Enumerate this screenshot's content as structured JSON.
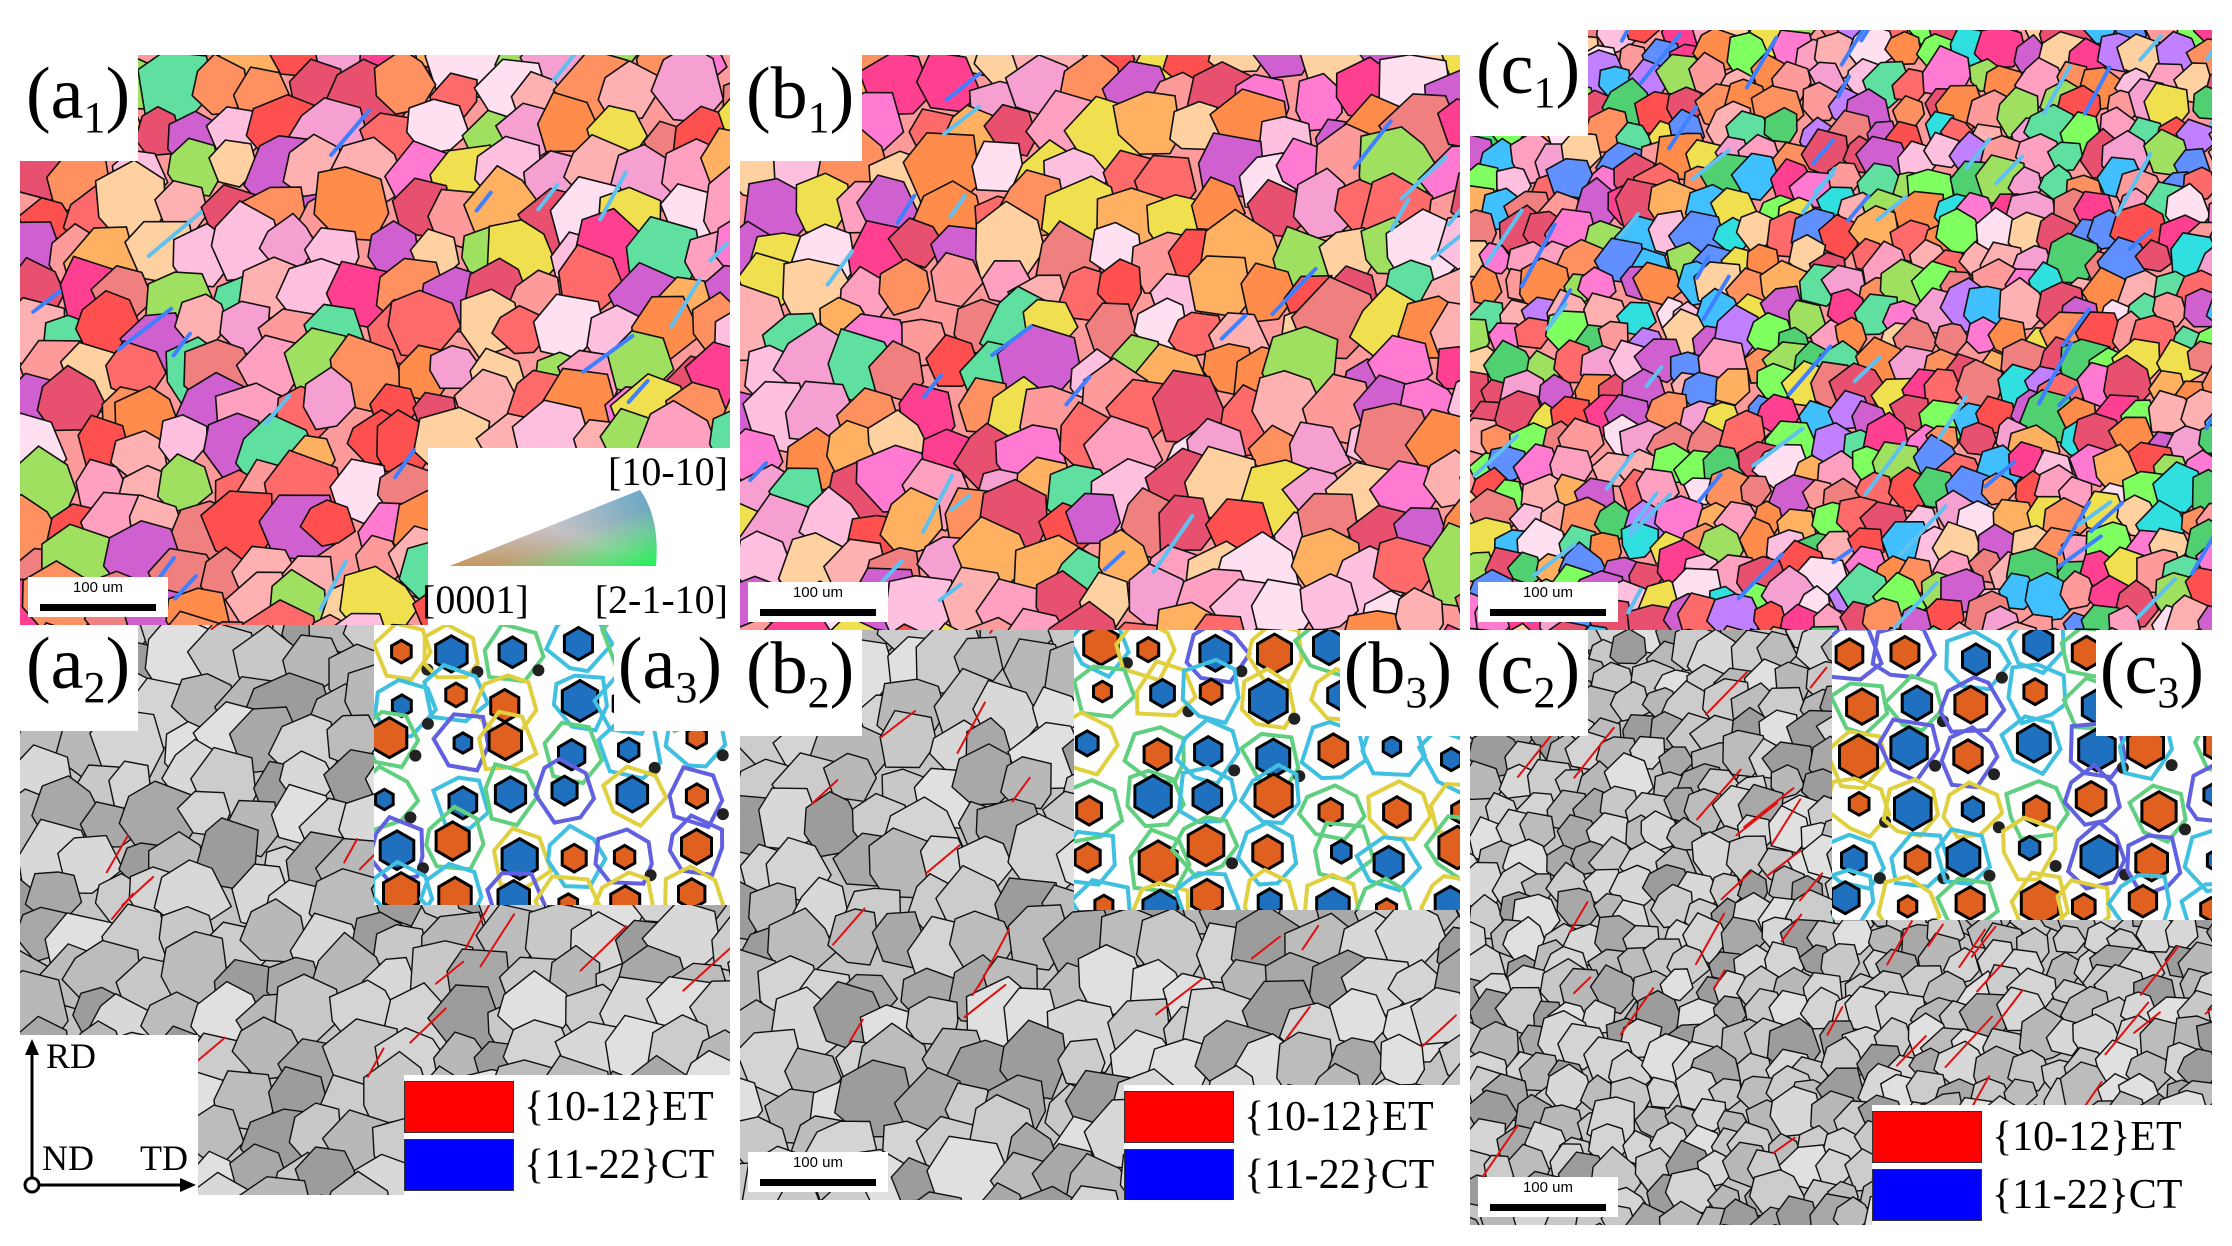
{
  "figure": {
    "panels": {
      "a1": {
        "letter": "(a",
        "sub": "1",
        "close": ")",
        "scale": "100 um"
      },
      "b1": {
        "letter": "(b",
        "sub": "1",
        "close": ")",
        "scale": "100 um"
      },
      "c1": {
        "letter": "(c",
        "sub": "1",
        "close": ")",
        "scale": "100 um"
      },
      "a2": {
        "letter": "(a",
        "sub": "2",
        "close": ")"
      },
      "b2": {
        "letter": "(b",
        "sub": "2",
        "close": ")",
        "scale": "100 um"
      },
      "c2": {
        "letter": "(c",
        "sub": "2",
        "close": ")",
        "scale": "100 um"
      },
      "a3": {
        "letter": "(a",
        "sub": "3",
        "close": ")"
      },
      "b3": {
        "letter": "(b",
        "sub": "3",
        "close": ")"
      },
      "c3": {
        "letter": "(c",
        "sub": "3",
        "close": ")"
      }
    },
    "ipf_key": {
      "top": "[10-10]",
      "left": "[0001]",
      "right": "[2-1-10]"
    },
    "legend": {
      "et": {
        "label": "{10-12}ET",
        "color": "#ff0000"
      },
      "ct": {
        "label": "{11-22}CT",
        "color": "#0000ff"
      }
    },
    "axes": {
      "rd": "RD",
      "nd": "ND",
      "td": "TD"
    },
    "colors": {
      "boundary": "#111111",
      "twin": "#e01010"
    }
  }
}
